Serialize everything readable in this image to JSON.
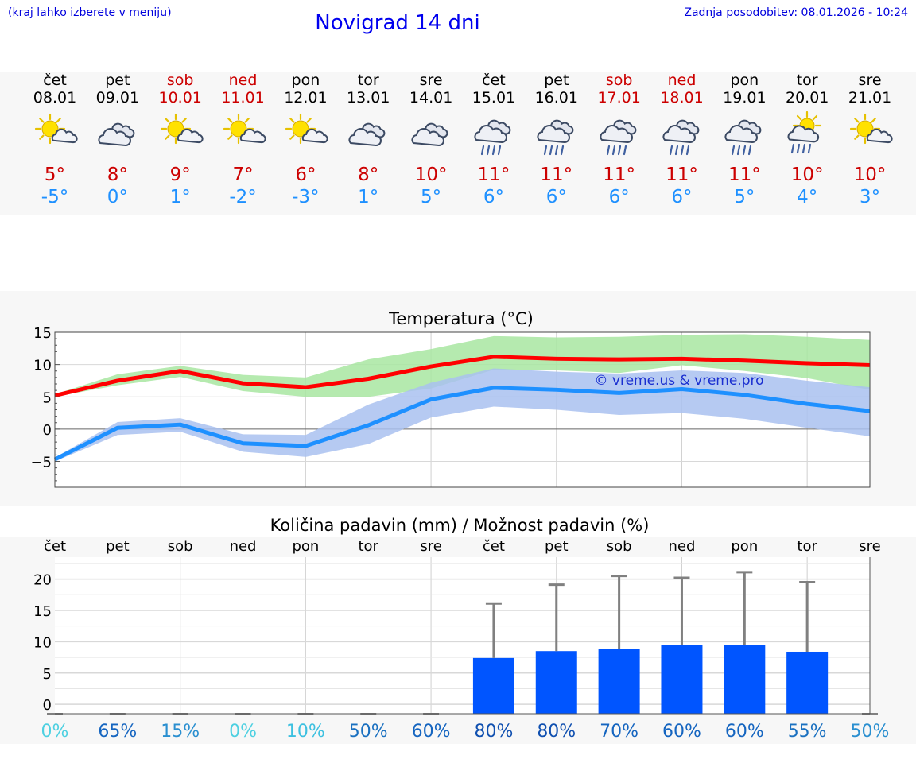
{
  "header": {
    "note": "(kraj lahko izberete v meniju)",
    "title": "Novigrad 14 dni",
    "updated": "Zadnja posodobitev: 08.01.2026 - 10:24"
  },
  "days": [
    {
      "name": "čet",
      "date": "08.01",
      "icon": "sun-cloud-icon",
      "max": "5°",
      "min": "-5°",
      "weekend": false
    },
    {
      "name": "pet",
      "date": "09.01",
      "icon": "cloudy-icon",
      "max": "8°",
      "min": "0°",
      "weekend": false
    },
    {
      "name": "sob",
      "date": "10.01",
      "icon": "sun-cloud-icon",
      "max": "9°",
      "min": "1°",
      "weekend": true
    },
    {
      "name": "ned",
      "date": "11.01",
      "icon": "sun-cloud-icon",
      "max": "7°",
      "min": "-2°",
      "weekend": true
    },
    {
      "name": "pon",
      "date": "12.01",
      "icon": "sun-cloud-icon",
      "max": "6°",
      "min": "-3°",
      "weekend": false
    },
    {
      "name": "tor",
      "date": "13.01",
      "icon": "cloudy-icon",
      "max": "8°",
      "min": "1°",
      "weekend": false
    },
    {
      "name": "sre",
      "date": "14.01",
      "icon": "cloudy-icon",
      "max": "10°",
      "min": "5°",
      "weekend": false
    },
    {
      "name": "čet",
      "date": "15.01",
      "icon": "rain-icon",
      "max": "11°",
      "min": "6°",
      "weekend": false
    },
    {
      "name": "pet",
      "date": "16.01",
      "icon": "rain-icon",
      "max": "11°",
      "min": "6°",
      "weekend": false
    },
    {
      "name": "sob",
      "date": "17.01",
      "icon": "rain-icon",
      "max": "11°",
      "min": "6°",
      "weekend": true
    },
    {
      "name": "ned",
      "date": "18.01",
      "icon": "rain-icon",
      "max": "11°",
      "min": "6°",
      "weekend": true
    },
    {
      "name": "pon",
      "date": "19.01",
      "icon": "rain-icon",
      "max": "11°",
      "min": "5°",
      "weekend": false
    },
    {
      "name": "tor",
      "date": "20.01",
      "icon": "sun-rain-icon",
      "max": "10°",
      "min": "4°",
      "weekend": false
    },
    {
      "name": "sre",
      "date": "21.01",
      "icon": "sun-cloud-icon",
      "max": "10°",
      "min": "3°",
      "weekend": false
    }
  ],
  "chart_data": [
    {
      "type": "line",
      "title": "Temperatura (°C)",
      "watermark": "© vreme.us & vreme.pro",
      "ylim": [
        -9,
        15
      ],
      "yticks": [
        -5,
        0,
        5,
        10,
        15
      ],
      "ytick_labels": [
        "−5",
        "0",
        "5",
        "10",
        "15"
      ],
      "x": [
        0,
        1,
        2,
        3,
        4,
        5,
        6,
        7,
        8,
        9,
        10,
        11,
        12,
        13
      ],
      "series": [
        {
          "name": "max",
          "color": "#ff0000",
          "values": [
            5.2,
            7.5,
            9.0,
            7.1,
            6.5,
            7.8,
            9.7,
            11.2,
            10.9,
            10.8,
            10.9,
            10.6,
            10.2,
            9.9
          ],
          "band_low": [
            5.0,
            6.8,
            8.1,
            5.9,
            5.0,
            5.0,
            6.3,
            9.2,
            9.1,
            8.7,
            9.9,
            9.0,
            7.9,
            6.1
          ],
          "band_high": [
            5.4,
            8.5,
            9.8,
            8.4,
            8.0,
            10.8,
            12.4,
            14.4,
            14.2,
            14.3,
            14.6,
            14.7,
            14.3,
            13.8
          ],
          "band_color": "#a8e6a1"
        },
        {
          "name": "min",
          "color": "#1e90ff",
          "values": [
            -4.7,
            0.2,
            0.7,
            -2.2,
            -2.6,
            0.6,
            4.6,
            6.4,
            6.1,
            5.6,
            6.2,
            5.3,
            3.9,
            2.8
          ],
          "band_low": [
            -5.0,
            -0.9,
            -0.4,
            -3.5,
            -4.3,
            -2.3,
            1.8,
            3.5,
            3.0,
            2.2,
            2.5,
            1.6,
            0.2,
            -1.1
          ],
          "band_high": [
            -4.4,
            1.1,
            1.7,
            -0.8,
            -0.9,
            3.8,
            7.2,
            9.4,
            8.9,
            8.6,
            9.1,
            8.7,
            7.5,
            6.5
          ],
          "band_color": "#a9c1f0"
        }
      ]
    },
    {
      "type": "bar",
      "title": "Količina padavin (mm) / Možnost padavin (%)",
      "categories": [
        "čet",
        "pet",
        "sob",
        "ned",
        "pon",
        "tor",
        "sre",
        "čet",
        "pet",
        "sob",
        "ned",
        "pon",
        "tor",
        "sre"
      ],
      "values": [
        0,
        0,
        0,
        0,
        0,
        0,
        0,
        7.4,
        8.5,
        8.8,
        9.5,
        9.5,
        8.4,
        0
      ],
      "error_high": [
        0,
        0,
        0,
        0,
        0,
        0,
        0,
        16.1,
        19.1,
        20.5,
        20.2,
        21.1,
        19.5,
        0
      ],
      "ylim": [
        -1.5,
        23.5
      ],
      "yticks": [
        0,
        5,
        10,
        15,
        20
      ],
      "ytick_labels": [
        "0",
        "5",
        "10",
        "15",
        "20"
      ],
      "bar_color": "#0055ff",
      "probabilities": [
        "0%",
        "65%",
        "15%",
        "0%",
        "10%",
        "50%",
        "60%",
        "80%",
        "80%",
        "70%",
        "60%",
        "60%",
        "55%",
        "50%"
      ],
      "probability_colors": [
        "#4dd0e1",
        "#1565c0",
        "#2a8fd0",
        "#4dd0e1",
        "#3cc0e0",
        "#1a70c0",
        "#1565c0",
        "#1050b0",
        "#1050b0",
        "#1565c0",
        "#1565c0",
        "#1565c0",
        "#1a70c0",
        "#2a8fd0"
      ]
    }
  ]
}
